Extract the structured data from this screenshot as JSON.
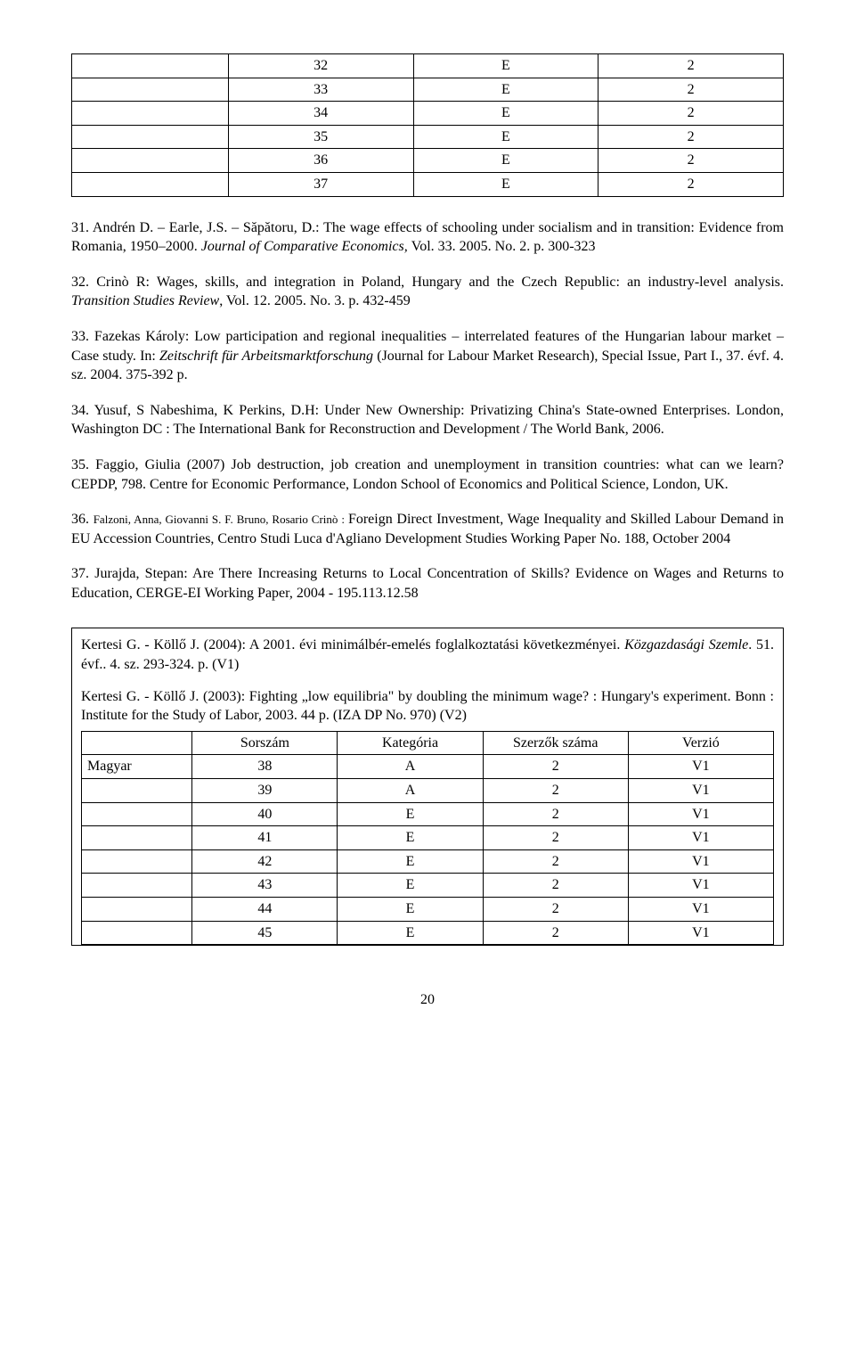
{
  "table1": {
    "rows": [
      [
        "",
        "32",
        "E",
        "2"
      ],
      [
        "",
        "33",
        "E",
        "2"
      ],
      [
        "",
        "34",
        "E",
        "2"
      ],
      [
        "",
        "35",
        "E",
        "2"
      ],
      [
        "",
        "36",
        "E",
        "2"
      ],
      [
        "",
        "37",
        "E",
        "2"
      ]
    ]
  },
  "refs": {
    "r31_a": "31. Andrén D. – Earle, J.S. – Săpătoru, D.: The wage effects of schooling under socialism and in transition: Evidence from Romania, 1950–2000. ",
    "r31_b": "Journal of Comparative Economics, ",
    "r31_c": "Vol. 33. 2005. No. 2. p. 300-323",
    "r32_a": "32. Crinò R: Wages, skills, and integration in Poland, Hungary and the Czech Republic: an industry-level analysis. ",
    "r32_b": "Transition Studies Review",
    "r32_c": ", Vol. 12. 2005. No. 3. p. 432-459",
    "r33_a": "33. Fazekas Károly: Low participation and regional inequalities – interrelated features of the Hungarian labour market – Case study. In: ",
    "r33_b": "Zeitschrift für Arbeitsmarktforschung ",
    "r33_c": "(Journal for Labour Market Research), Special Issue, Part I.,  37. évf. 4. sz. 2004. 375-392 p.",
    "r34": "34. Yusuf, S Nabeshima, K Perkins, D.H: Under New Ownership: Privatizing China's State-owned Enterprises. London, Washington DC : The International Bank for Reconstruction and Development / The World Bank, 2006.",
    "r35_a": "35. Faggio, Giulia (2007) Job destruction, job creation and unemployment in transition countries: what can we learn?",
    "r35_b": " CEPDP, 798.",
    "r35_c": " Centre for Economic Performance, London School of Economics and Political Science, London, UK.",
    "r36_a": "36. ",
    "r36_b": "Falzoni, Anna, Giovanni S. F. Bruno,  Rosario Crinò : ",
    "r36_c": "Foreign Direct Investment, Wage Inequality and Skilled Labour Demand in EU Accession Countries, Centro Studi Luca d'Agliano Development Studies Working Paper No. 188, October 2004",
    "r37": "37. Jurajda, Stepan: Are There Increasing Returns to Local Concentration of Skills? Evidence on Wages and Returns to Education,  CERGE-EI Working Paper, 2004 - 195.113.12.58"
  },
  "box": {
    "p1_a": "Kertesi G. - Köllő J. (2004): A 2001. évi minimálbér-emelés foglalkoztatási következményei. ",
    "p1_b": "Közgazdasági Szemle",
    "p1_c": ". 51. évf.. 4. sz. 293-324. p. (V1)",
    "p2": "Kertesi G. - Köllő J. (2003): Fighting „low equilibria\" by doubling the minimum wage? : Hungary's experiment. Bonn : Institute for the Study of Labor, 2003. 44 p. (IZA DP No. 970) (V2)"
  },
  "table2": {
    "headers": [
      "",
      "Sorszám",
      "Kategória",
      "Szerzők száma",
      "Verzió"
    ],
    "rows": [
      [
        "Magyar",
        "38",
        "A",
        "2",
        "V1"
      ],
      [
        "",
        "39",
        "A",
        "2",
        "V1"
      ],
      [
        "",
        "40",
        "E",
        "2",
        "V1"
      ],
      [
        "",
        "41",
        "E",
        "2",
        "V1"
      ],
      [
        "",
        "42",
        "E",
        "2",
        "V1"
      ],
      [
        "",
        "43",
        "E",
        "2",
        "V1"
      ],
      [
        "",
        "44",
        "E",
        "2",
        "V1"
      ],
      [
        "",
        "45",
        "E",
        "2",
        "V1"
      ]
    ]
  },
  "pagenum": "20"
}
